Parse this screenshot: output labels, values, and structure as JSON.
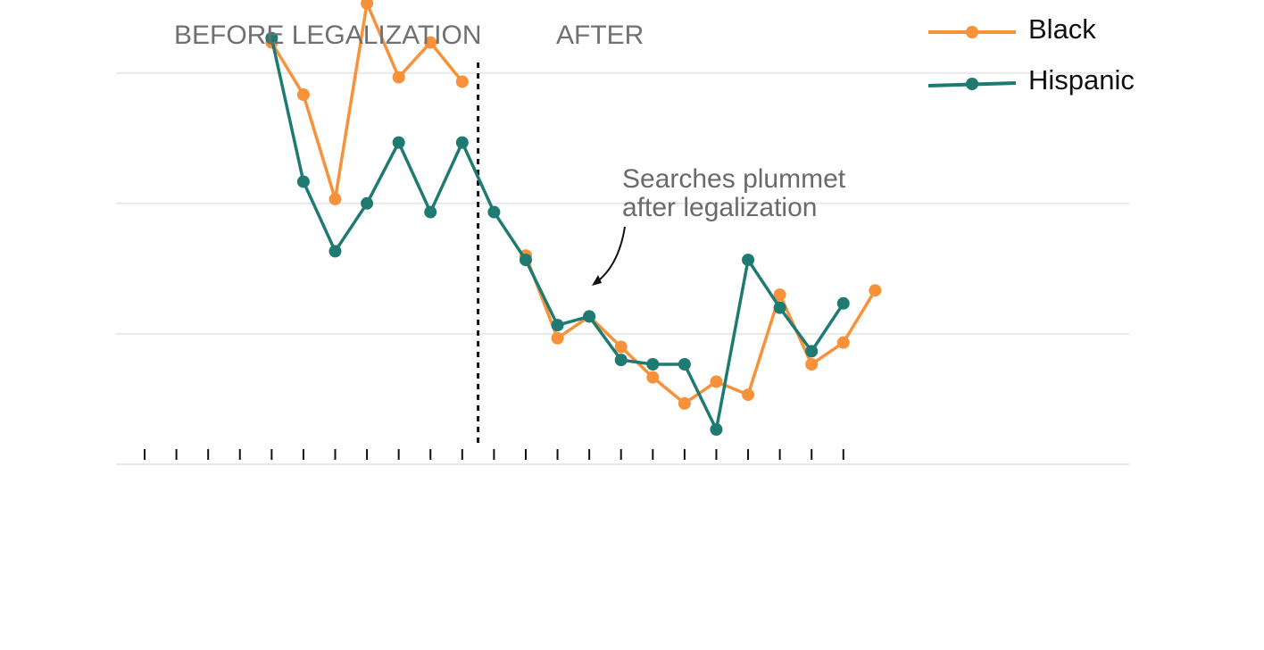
{
  "chart_data": {
    "type": "line",
    "title": "",
    "xlabel": "",
    "ylabel": "",
    "period_labels": {
      "before": "BEFORE LEGALIZATION",
      "after": "AFTER"
    },
    "annotation": {
      "lines": [
        "Searches plummet",
        "after legalization"
      ]
    },
    "legend_placement": "top-right",
    "grid": true,
    "x": [
      1,
      2,
      3,
      4,
      5,
      6,
      7,
      8,
      9,
      10,
      11,
      12,
      13,
      14,
      15,
      16,
      17,
      18,
      19,
      20,
      21,
      22,
      23
    ],
    "xlim": [
      -3.9,
      28
    ],
    "ylim": [
      0,
      10
    ],
    "yticks": [
      3,
      6,
      9
    ],
    "legalization_x": 7.5,
    "series": [
      {
        "name": "Black",
        "color": "#f7923a",
        "values": [
          9.7,
          8.5,
          6.1,
          10.6,
          8.9,
          9.7,
          8.8,
          null,
          4.8,
          2.9,
          3.4,
          2.7,
          2.0,
          1.4,
          1.9,
          1.6,
          3.9,
          2.3,
          2.8,
          4.0,
          null,
          null,
          null
        ]
      },
      {
        "name": "Hispanic",
        "color": "#1f7b71",
        "values": [
          9.8,
          6.5,
          4.9,
          6.0,
          7.4,
          5.8,
          7.4,
          5.8,
          4.7,
          3.2,
          3.4,
          2.4,
          2.3,
          2.3,
          0.8,
          4.7,
          3.6,
          2.6,
          3.7,
          null,
          null,
          null,
          null
        ]
      }
    ]
  }
}
